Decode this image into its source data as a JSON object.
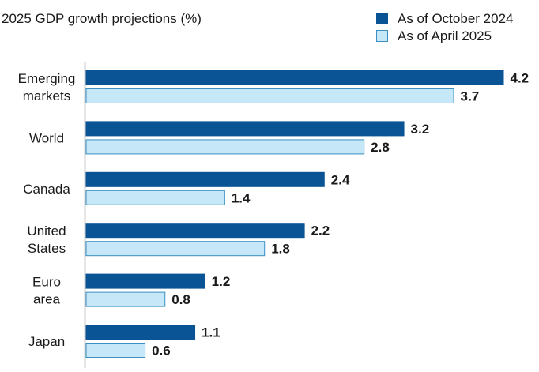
{
  "chart_data": {
    "type": "bar",
    "orientation": "horizontal",
    "title": "2025 GDP growth projections (%)",
    "xlabel": "",
    "ylabel": "",
    "categories": [
      [
        "Emerging",
        "markets"
      ],
      [
        "World"
      ],
      [
        "Canada"
      ],
      [
        "United",
        "States"
      ],
      [
        "Euro",
        "area"
      ],
      [
        "Japan"
      ]
    ],
    "series": [
      {
        "name": "As of October 2024",
        "color": "#0a5394",
        "values": [
          4.2,
          3.2,
          2.4,
          2.2,
          1.2,
          1.1
        ]
      },
      {
        "name": "As of April 2025",
        "color": "#c6e7f7",
        "edge": "#3a8fc4",
        "values": [
          3.7,
          2.8,
          1.4,
          1.8,
          0.8,
          0.6
        ]
      }
    ],
    "xlim": [
      0,
      4.2
    ],
    "grid": false,
    "legend": "top-right",
    "data_labels": true
  }
}
